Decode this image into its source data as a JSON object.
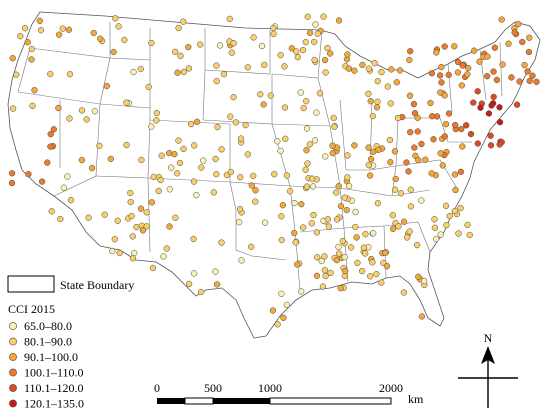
{
  "legend": {
    "boundary_label": "State Boundary",
    "title": "CCI 2015",
    "classes": [
      {
        "label": "65.0–80.0",
        "color": "#fcf0b0"
      },
      {
        "label": "80.1–90.0",
        "color": "#f9cf6a"
      },
      {
        "label": "90.1–100.0",
        "color": "#f3a83a"
      },
      {
        "label": "100.1–110.0",
        "color": "#ec7a2a"
      },
      {
        "label": "110.1–120.0",
        "color": "#df4a22"
      },
      {
        "label": "120.1–135.0",
        "color": "#c81a1a"
      }
    ]
  },
  "scale_bar": {
    "ticks": [
      "0",
      "500",
      "1000",
      "2000"
    ],
    "unit": "km"
  },
  "north_arrow": {
    "label": "N"
  }
}
